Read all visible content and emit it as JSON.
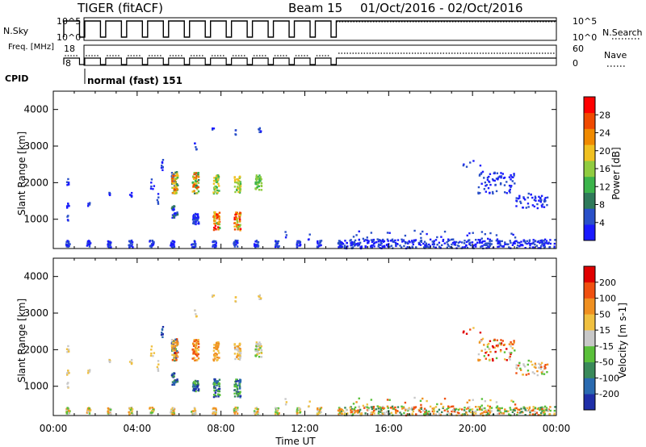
{
  "header": {
    "station": "TIGER (fitACF)",
    "beam": "Beam 15",
    "dates": "01/Oct/2016 - 02/Oct/2016",
    "cpid_label": "CPID",
    "cpid_text": "normal (fast) 151"
  },
  "colors": {
    "power_scale": [
      "#1a1aff",
      "#2a50c8",
      "#2f7a5a",
      "#3cb44b",
      "#90cc40",
      "#f0c020",
      "#f08a00",
      "#f04a00",
      "#ff0000"
    ],
    "velocity_scale": [
      "#1f2fa8",
      "#2a6ab0",
      "#3a8a5a",
      "#5ac03a",
      "#c8c8c8",
      "#f0c040",
      "#f09020",
      "#f05010",
      "#e00000"
    ]
  },
  "chart_data": [
    {
      "type": "line",
      "panel": "nsky-nsearch",
      "left_label": "N.Sky",
      "left_ticks": [
        "10^5",
        "10^0"
      ],
      "right_label": "N.Search",
      "right_ticks": [
        "10^5",
        "10^0"
      ]
    },
    {
      "type": "line",
      "panel": "freq-nave",
      "left_label": "Freq. [MHz]",
      "left_ticks": [
        "18",
        "8"
      ],
      "right_label": "Nave",
      "right_ticks": [
        "60",
        "0"
      ]
    },
    {
      "type": "heatmap",
      "panel": "power",
      "ylabel": "Slant Range [km]",
      "yticks": [
        1000,
        2000,
        3000,
        4000
      ],
      "ylim": [
        200,
        4500
      ],
      "xlim": [
        0,
        24
      ],
      "colorbar_label": "Power [dB]",
      "colorbar_ticks": [
        "4",
        "8",
        "12",
        "16",
        "20",
        "24",
        "28"
      ],
      "colorbar_range": [
        0,
        32
      ]
    },
    {
      "type": "heatmap",
      "panel": "velocity",
      "ylabel": "Slant Range [km]",
      "yticks": [
        1000,
        2000,
        3000,
        4000
      ],
      "ylim": [
        200,
        4500
      ],
      "xlim": [
        0,
        24
      ],
      "xlabel": "Time UT",
      "xticks": [
        "00:00",
        "04:00",
        "08:00",
        "12:00",
        "16:00",
        "20:00",
        "00:00"
      ],
      "colorbar_label": "Velocity [m s-1]",
      "colorbar_ticks": [
        "200",
        "100",
        "50",
        "15",
        "-15",
        "-50",
        "-100",
        "-200"
      ]
    }
  ]
}
